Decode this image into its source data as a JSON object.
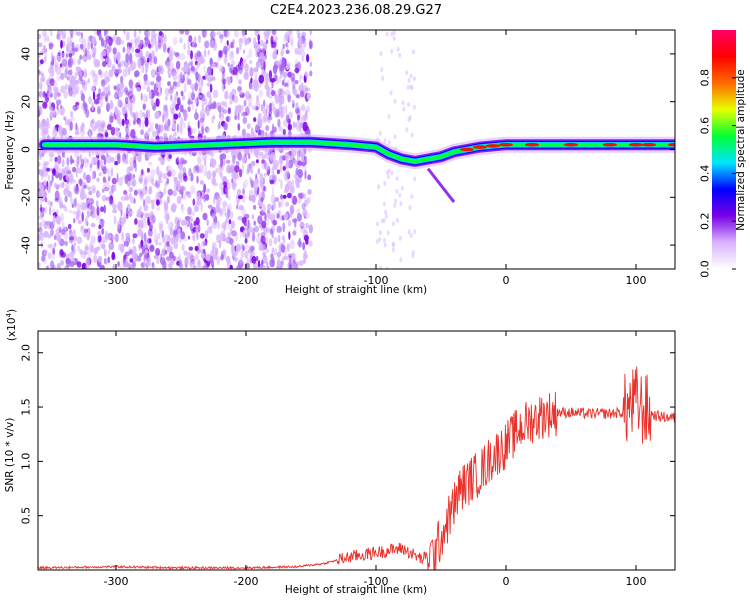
{
  "title": "C2E4.2023.236.08.29.G27",
  "chart_data": [
    {
      "type": "heatmap",
      "xlabel": "Height of straight line (km)",
      "ylabel": "Frequency (Hz)",
      "xlim": [
        -360,
        130
      ],
      "ylim": [
        -50,
        50
      ],
      "x_ticks": [
        -300,
        -200,
        -100,
        0,
        100
      ],
      "y_ticks": [
        -40,
        -20,
        0,
        20,
        40
      ],
      "colorbar": {
        "label": "Normalized spectral amplitude",
        "range": [
          0,
          1
        ],
        "ticks": [
          0.0,
          0.2,
          0.4,
          0.6,
          0.8
        ],
        "colormap": "rainbow",
        "colors": [
          "#ffffff",
          "#d9b3ff",
          "#7a00e6",
          "#0000ff",
          "#00e5ff",
          "#00ff33",
          "#e8ff00",
          "#ff6a00",
          "#ff0000",
          "#ff0066"
        ]
      },
      "signal_trace": {
        "x": [
          -355,
          -300,
          -270,
          -180,
          -150,
          -120,
          -100,
          -90,
          -80,
          -70,
          -60,
          -50,
          -40,
          -30,
          -20,
          -10,
          0,
          20,
          50,
          80,
          100,
          110,
          130
        ],
        "y": [
          2,
          2,
          1,
          3,
          3,
          2,
          1,
          -2,
          -4,
          -5,
          -4,
          -3,
          -1,
          0,
          1,
          1.5,
          2,
          2,
          2,
          2,
          2,
          2,
          2
        ]
      }
    },
    {
      "type": "line",
      "xlabel": "Height of straight line (km)",
      "ylabel": "SNR (10 * v/v)",
      "y_scale_label": "(x10",
      "y_scale_exp": "4",
      "y_scale_close": ")",
      "xlim": [
        -360,
        130
      ],
      "ylim": [
        0,
        2.2
      ],
      "x_ticks": [
        -300,
        -200,
        -100,
        0,
        100
      ],
      "y_ticks": [
        0.5,
        1.0,
        1.5,
        2.0
      ],
      "series": [
        {
          "color": "#e8322b",
          "x": [
            -360,
            -300,
            -250,
            -200,
            -160,
            -140,
            -120,
            -100,
            -80,
            -65,
            -55,
            -45,
            -40,
            -35,
            -30,
            -25,
            -20,
            -10,
            0,
            10,
            20,
            30,
            40,
            50,
            60,
            70,
            80,
            90,
            95,
            100,
            105,
            110,
            115,
            120,
            130
          ],
          "values": [
            0.02,
            0.03,
            0.02,
            0.02,
            0.03,
            0.06,
            0.12,
            0.16,
            0.2,
            0.1,
            0.15,
            0.45,
            0.6,
            0.75,
            0.8,
            0.85,
            0.9,
            1.05,
            1.15,
            1.3,
            1.38,
            1.43,
            1.45,
            1.45,
            1.44,
            1.44,
            1.44,
            1.45,
            1.5,
            1.55,
            1.48,
            1.45,
            1.42,
            1.41,
            1.4
          ]
        }
      ]
    }
  ]
}
